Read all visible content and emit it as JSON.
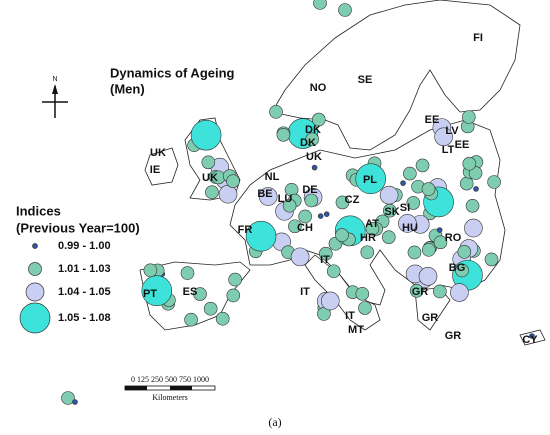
{
  "title": "Dynamics of Ageing",
  "subtitle": "(Men)",
  "compass": "N",
  "legend": {
    "title": "Indices",
    "subtitle": "(Previous Year=100)",
    "items": [
      {
        "label": "0.99 - 1.00",
        "color": "#2f55a4"
      },
      {
        "label": "1.01 - 1.03",
        "color": "#7fcdb0"
      },
      {
        "label": "1.04 - 1.05",
        "color": "#c9cff2"
      },
      {
        "label": "1.05 - 1.08",
        "color": "#3de3da"
      }
    ]
  },
  "country_labels": [
    "NO",
    "SE",
    "FI",
    "EE",
    "EE",
    "LV",
    "LT",
    "DK",
    "DK",
    "UK",
    "UK",
    "IE",
    "UK",
    "NL",
    "BE",
    "LU",
    "DE",
    "PL",
    "FR",
    "CH",
    "AT",
    "SI",
    "HR",
    "HU",
    "SK",
    "CZ",
    "RO",
    "BG",
    "IT",
    "IT",
    "IT",
    "MT",
    "ES",
    "PT",
    "GR",
    "GR",
    "GR",
    "CY"
  ],
  "scale": {
    "ticks": "0 125 250 500 750 1000",
    "unit": "Kilometers"
  },
  "caption": "(a)"
}
